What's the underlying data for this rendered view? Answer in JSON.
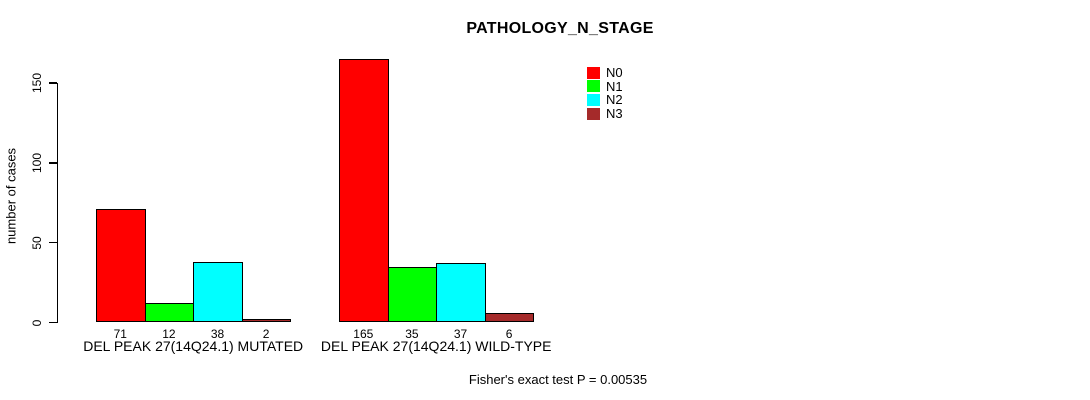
{
  "chart_data": {
    "type": "bar",
    "title": "PATHOLOGY_N_STAGE",
    "ylabel": "number of cases",
    "xlabel": "",
    "categories": [
      "DEL PEAK 27(14Q24.1) MUTATED",
      "DEL PEAK 27(14Q24.1) WILD-TYPE"
    ],
    "series": [
      {
        "name": "N0",
        "color": "#ff0000",
        "values": [
          71,
          165
        ]
      },
      {
        "name": "N1",
        "color": "#00ff00",
        "values": [
          12,
          35
        ]
      },
      {
        "name": "N2",
        "color": "#00ffff",
        "values": [
          38,
          37
        ]
      },
      {
        "name": "N3",
        "color": "#a52a2a",
        "values": [
          2,
          6
        ]
      }
    ],
    "yticks": [
      0,
      50,
      100,
      150
    ],
    "ylim": [
      0,
      170
    ],
    "grid": false,
    "legend_position": "top-right",
    "annotation": "Fisher's exact test P = 0.00535"
  }
}
